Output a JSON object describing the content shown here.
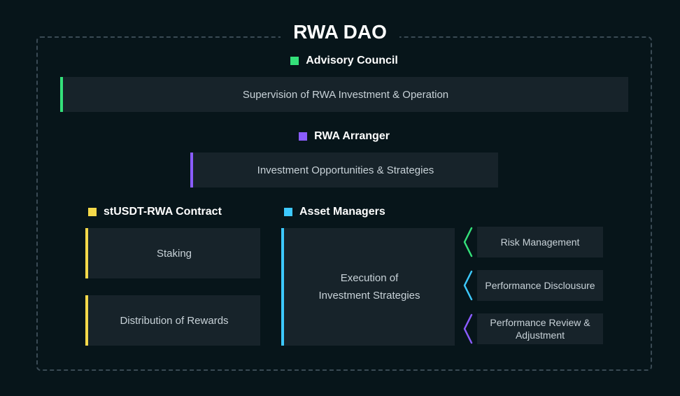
{
  "title": "RWA DAO",
  "background_color": "#07151a",
  "box_color": "#17232a",
  "text_color": "#c8d2d8",
  "frame_color": "#3a4a54",
  "advisory": {
    "label": "Advisory Council",
    "color": "#34e07a",
    "box_text": "Supervision of RWA Investment & Operation"
  },
  "arranger": {
    "label": "RWA Arranger",
    "color": "#8a5cff",
    "box_text": "Investment Opportunities & Strategies"
  },
  "contract": {
    "label": "stUSDT-RWA Contract",
    "color": "#f5d94a",
    "boxes": [
      "Staking",
      "Distribution of Rewards"
    ]
  },
  "managers": {
    "label": "Asset Managers",
    "color": "#3dc9ff",
    "box_text": "Execution of\nInvestment Strategies"
  },
  "side_items": [
    {
      "label": "Risk Management",
      "chevron_color": "#34e07a"
    },
    {
      "label": "Performance Disclousure",
      "chevron_color": "#3dc9ff"
    },
    {
      "label": "Performance Review & Adjustment",
      "chevron_color": "#8a5cff"
    }
  ]
}
